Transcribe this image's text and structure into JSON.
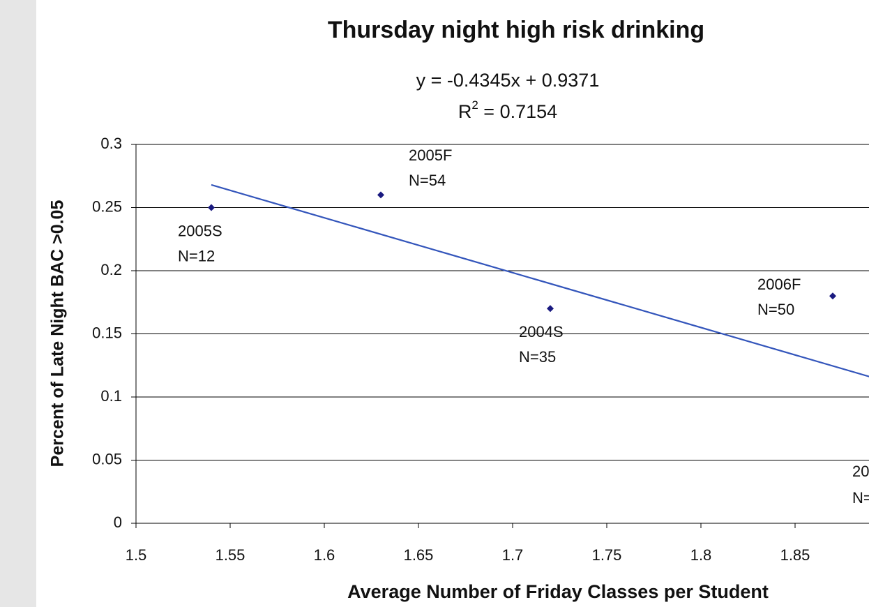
{
  "chart_data": {
    "type": "scatter",
    "title": "Thursday night high risk drinking",
    "x_label": "Average Number of Friday Classes per Student",
    "y_label": "Percent of Late Night BAC >0.05",
    "x": [
      1.54,
      1.63,
      1.72,
      1.87
    ],
    "values": [
      0.25,
      0.26,
      0.17,
      0.18
    ],
    "point_labels": [
      [
        "2005S",
        "N=12"
      ],
      [
        "2005F",
        "N=54"
      ],
      [
        "2004S",
        "N=35"
      ],
      [
        "2006F",
        "N=50"
      ]
    ],
    "cropped_label": [
      "20",
      "N="
    ],
    "color": "#1a1a80",
    "trendline": {
      "equation": "y = -0.4345x + 0.9371",
      "r_squared": {
        "prefix": "R",
        "superscript": "2",
        "text": " = 0.7154"
      },
      "slope": -0.4345,
      "intercept": 0.9371,
      "x_range": [
        1.54,
        1.9
      ],
      "color": "#3355bb"
    },
    "xlim": [
      1.5,
      1.9
    ],
    "xticks": [
      1.5,
      1.55,
      1.6,
      1.65,
      1.7,
      1.75,
      1.8,
      1.85
    ],
    "ylim": [
      0,
      0.3
    ],
    "yticks": [
      0,
      0.05,
      0.1,
      0.15,
      0.2,
      0.25,
      0.3
    ],
    "grid": true
  }
}
